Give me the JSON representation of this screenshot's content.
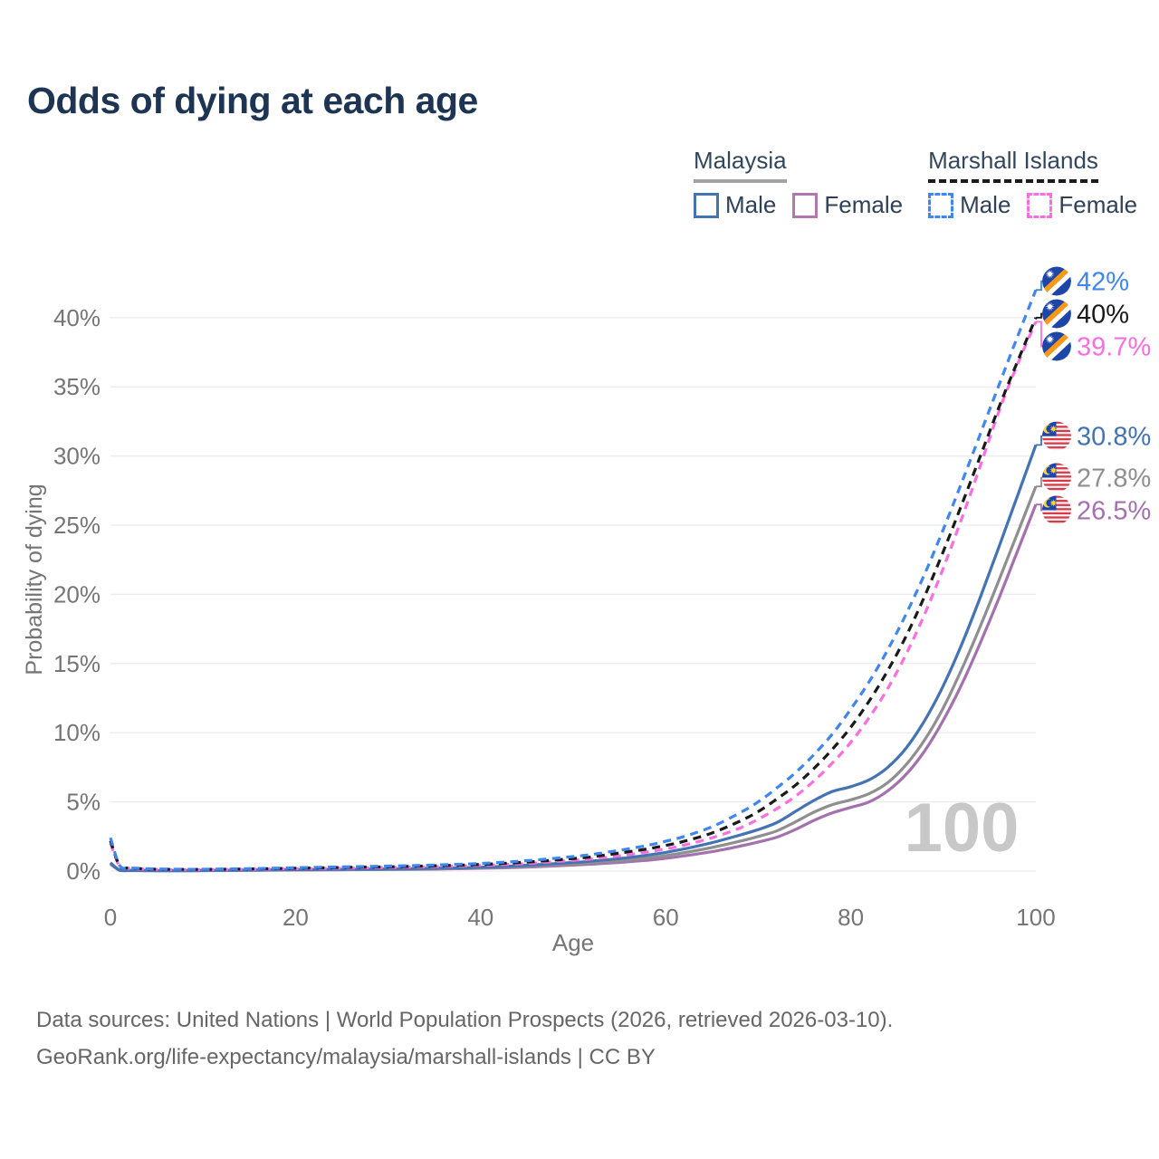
{
  "title": "Odds of dying at each age",
  "legend": {
    "groups": [
      {
        "country": "Malaysia",
        "style": "solid",
        "underline_color": "#a3a3a3",
        "items": [
          {
            "label": "Male",
            "color": "#4473b3",
            "dashed": false
          },
          {
            "label": "Female",
            "color": "#b277af",
            "dashed": false
          }
        ]
      },
      {
        "country": "Marshall Islands",
        "style": "dashed",
        "underline_color": "#1a1a1a",
        "items": [
          {
            "label": "Male",
            "color": "#3f86f0",
            "dashed": true
          },
          {
            "label": "Female",
            "color": "#fb6ee0",
            "dashed": true
          }
        ]
      }
    ]
  },
  "palette": {
    "grid": "#ececec",
    "axis_text": "#757575",
    "title_text": "#1d3553",
    "watermark": "#c8c8c8",
    "footer_text": "#666666",
    "legend_text": "#2e4157"
  },
  "chart_data": {
    "type": "line",
    "title": "Odds of dying at each age",
    "xlabel": "Age",
    "ylabel": "Probability of dying",
    "xlim": [
      0,
      100
    ],
    "ylim_pct": [
      0,
      44
    ],
    "grid": "horizontal",
    "watermark": "100",
    "x_ticks": [
      0,
      20,
      40,
      60,
      80,
      100
    ],
    "x_tick_labels": [
      "0",
      "20",
      "40",
      "60",
      "80",
      "100"
    ],
    "y_ticks_pct": [
      0,
      5,
      10,
      15,
      20,
      25,
      30,
      35,
      40
    ],
    "y_tick_labels": [
      "0%",
      "5%",
      "10%",
      "15%",
      "20%",
      "25%",
      "30%",
      "35%",
      "40%"
    ],
    "x": [
      0,
      1,
      2,
      3,
      5,
      8,
      10,
      15,
      20,
      25,
      30,
      35,
      40,
      45,
      50,
      52,
      55,
      58,
      60,
      62,
      65,
      68,
      70,
      72,
      74,
      76,
      78,
      80,
      82,
      84,
      86,
      88,
      90,
      92,
      94,
      96,
      98,
      100
    ],
    "series": [
      {
        "id": "malaysia-female",
        "name": "Malaysia Female",
        "color": "#a371ae",
        "dash": false,
        "flag": "malaysia",
        "end_label": "26.5%",
        "values": [
          0.5,
          0.05,
          0.036,
          0.032,
          0.027,
          0.027,
          0.03,
          0.05,
          0.07,
          0.09,
          0.11,
          0.14,
          0.2,
          0.29,
          0.43,
          0.5,
          0.62,
          0.78,
          0.92,
          1.1,
          1.4,
          1.8,
          2.1,
          2.45,
          3.0,
          3.65,
          4.2,
          4.6,
          5.0,
          5.8,
          7.0,
          8.7,
          10.9,
          13.5,
          16.5,
          19.7,
          23.1,
          26.5
        ]
      },
      {
        "id": "malaysia-both",
        "name": "Malaysia",
        "color": "#8f8f8f",
        "dash": false,
        "flag": "malaysia",
        "end_label": "27.8%",
        "values": [
          0.55,
          0.055,
          0.04,
          0.036,
          0.03,
          0.03,
          0.035,
          0.06,
          0.085,
          0.105,
          0.13,
          0.17,
          0.24,
          0.35,
          0.52,
          0.6,
          0.75,
          0.95,
          1.12,
          1.33,
          1.7,
          2.15,
          2.5,
          2.9,
          3.55,
          4.25,
          4.8,
          5.15,
          5.6,
          6.4,
          7.7,
          9.5,
          11.8,
          14.6,
          17.7,
          21.0,
          24.4,
          27.8
        ]
      },
      {
        "id": "malaysia-male",
        "name": "Malaysia Male",
        "color": "#4473b3",
        "dash": false,
        "flag": "malaysia",
        "end_label": "30.8%",
        "values": [
          0.6,
          0.06,
          0.045,
          0.04,
          0.035,
          0.035,
          0.04,
          0.07,
          0.1,
          0.12,
          0.15,
          0.2,
          0.28,
          0.42,
          0.62,
          0.72,
          0.9,
          1.15,
          1.35,
          1.6,
          2.05,
          2.6,
          3.0,
          3.5,
          4.3,
          5.1,
          5.75,
          6.1,
          6.6,
          7.5,
          8.9,
          10.9,
          13.4,
          16.4,
          19.8,
          23.4,
          27.1,
          30.8
        ]
      },
      {
        "id": "marshall-islands-female",
        "name": "Marshall Islands Female",
        "color": "#fb6ee0",
        "dash": true,
        "flag": "marshall-islands",
        "end_label": "39.7%",
        "values": [
          2.0,
          0.33,
          0.2,
          0.16,
          0.11,
          0.1,
          0.1,
          0.13,
          0.17,
          0.21,
          0.26,
          0.32,
          0.41,
          0.55,
          0.78,
          0.88,
          1.1,
          1.38,
          1.6,
          1.88,
          2.4,
          3.1,
          3.75,
          4.5,
          5.4,
          6.5,
          7.8,
          9.3,
          11.1,
          13.2,
          15.7,
          18.6,
          21.9,
          25.5,
          29.3,
          33.2,
          36.6,
          39.7
        ]
      },
      {
        "id": "marshall-islands-both",
        "name": "Marshall Islands",
        "color": "#1a1a1a",
        "dash": true,
        "flag": "marshall-islands",
        "end_label": "40%",
        "values": [
          2.2,
          0.37,
          0.23,
          0.18,
          0.13,
          0.12,
          0.12,
          0.15,
          0.2,
          0.26,
          0.31,
          0.38,
          0.48,
          0.65,
          0.9,
          1.03,
          1.3,
          1.6,
          1.85,
          2.15,
          2.75,
          3.6,
          4.3,
          5.2,
          6.2,
          7.4,
          8.8,
          10.4,
          12.3,
          14.5,
          17.0,
          19.9,
          23.1,
          26.5,
          30.0,
          33.5,
          36.8,
          40.0
        ]
      },
      {
        "id": "marshall-islands-male",
        "name": "Marshall Islands Male",
        "color": "#3f86f0",
        "dash": true,
        "flag": "marshall-islands",
        "end_label": "42%",
        "values": [
          2.4,
          0.4,
          0.25,
          0.2,
          0.15,
          0.13,
          0.13,
          0.17,
          0.24,
          0.3,
          0.36,
          0.44,
          0.55,
          0.75,
          1.05,
          1.2,
          1.5,
          1.85,
          2.15,
          2.5,
          3.2,
          4.2,
          5.0,
          6.0,
          7.1,
          8.4,
          9.9,
          11.7,
          13.7,
          16.0,
          18.6,
          21.5,
          24.7,
          28.1,
          31.6,
          35.1,
          38.6,
          42.0
        ]
      }
    ]
  },
  "footer": {
    "line1": "Data sources: United Nations | World Population Prospects (2026, retrieved 2026-03-10).",
    "line2": "GeoRank.org/life-expectancy/malaysia/marshall-islands | CC BY"
  }
}
